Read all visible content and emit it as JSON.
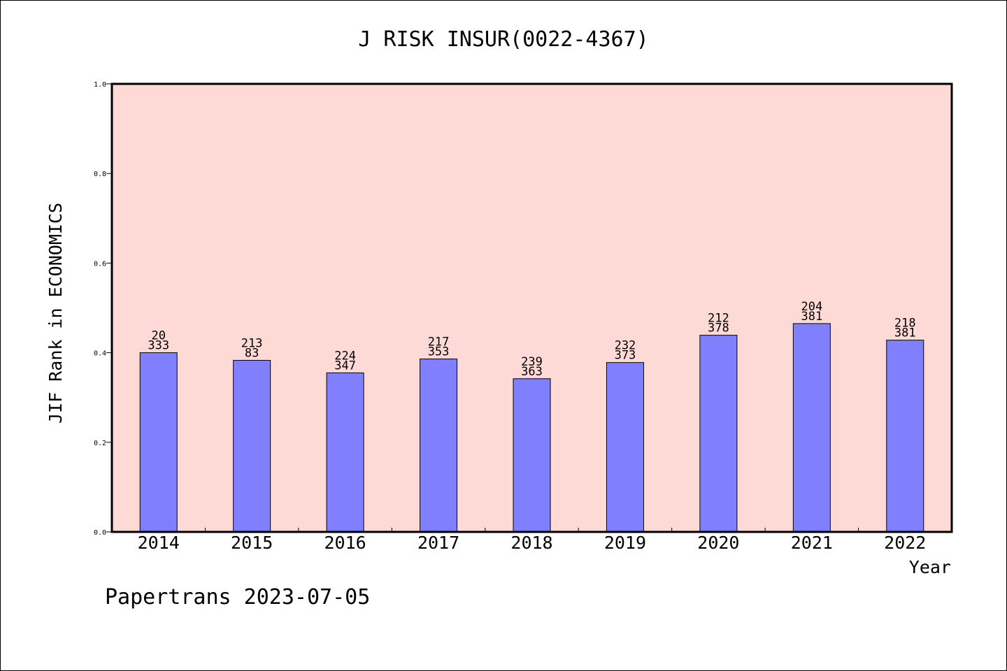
{
  "chart_data": {
    "type": "bar",
    "title": "J RISK INSUR(0022-4367)",
    "xlabel": "Year",
    "ylabel": "JIF Rank in ECONOMICS",
    "ylim": [
      0.0,
      1.0
    ],
    "yticks": [
      "0.0",
      "0.2",
      "0.4",
      "0.6",
      "0.8",
      "1.0"
    ],
    "categories": [
      "2014",
      "2015",
      "2016",
      "2017",
      "2018",
      "2019",
      "2020",
      "2021",
      "2022"
    ],
    "values": [
      0.4,
      0.383,
      0.355,
      0.386,
      0.342,
      0.378,
      0.439,
      0.465,
      0.428
    ],
    "label_top": [
      "20",
      "213",
      "224",
      "217",
      "239",
      "232",
      "212",
      "204",
      "218"
    ],
    "label_bottom": [
      "333",
      "83",
      "347",
      "353",
      "363",
      "373",
      "378",
      "381",
      "381"
    ],
    "grid": false,
    "colors": {
      "plot_background": "#fddad6",
      "bar_fill": "#8080ff",
      "bar_stroke": "#000000"
    }
  },
  "footer": "Papertrans 2023-07-05"
}
